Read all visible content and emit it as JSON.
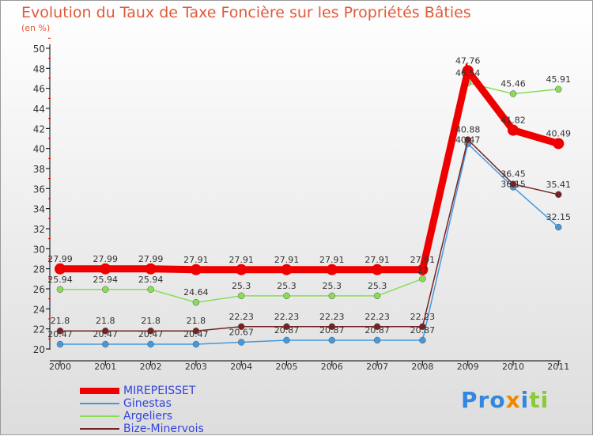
{
  "chart_data": {
    "type": "line",
    "title": "Evolution du Taux de Taxe Foncière sur les Propriétés Bâties",
    "ylabel": "(en %)",
    "ylim": [
      20,
      50
    ],
    "yticks": [
      20,
      22,
      24,
      26,
      28,
      30,
      32,
      34,
      36,
      38,
      40,
      42,
      44,
      46,
      48,
      50
    ],
    "x": [
      "2000",
      "2001",
      "2002",
      "2003",
      "2004",
      "2005",
      "2006",
      "2007",
      "2008",
      "2009",
      "2010",
      "2011"
    ],
    "series": [
      {
        "name": "MIREPEISSET",
        "color": "#ee0000",
        "values": [
          27.99,
          27.99,
          27.99,
          27.91,
          27.91,
          27.91,
          27.91,
          27.91,
          27.91,
          47.76,
          41.82,
          40.49
        ]
      },
      {
        "name": "Ginestas",
        "color": "#4499dd",
        "values": [
          20.47,
          20.47,
          20.47,
          20.47,
          20.67,
          20.87,
          20.87,
          20.87,
          20.87,
          40.47,
          36.15,
          32.15
        ]
      },
      {
        "name": "Argeliers",
        "color": "#88dd55",
        "values": [
          25.94,
          25.94,
          25.94,
          24.64,
          25.3,
          25.3,
          25.3,
          25.3,
          27,
          46.54,
          45.46,
          45.91
        ]
      },
      {
        "name": "Bize-Minervois",
        "color": "#772222",
        "values": [
          21.8,
          21.8,
          21.8,
          21.8,
          22.23,
          22.23,
          22.23,
          22.23,
          22.23,
          40.88,
          36.45,
          35.41
        ]
      }
    ]
  },
  "logo": "Proxiti"
}
